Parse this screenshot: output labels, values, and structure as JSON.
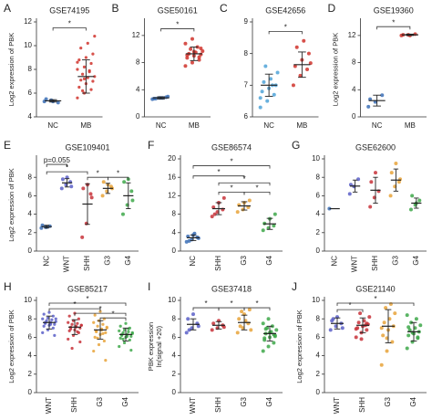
{
  "chart_data": [
    {
      "type": "dotplot",
      "panel": "A",
      "title": "GSE74195",
      "ylabel": "Log2 expression of PBK",
      "categories": [
        "NC",
        "MB"
      ],
      "colors": [
        "#3b6fb6",
        "#d0332b"
      ],
      "points": [
        [
          5.3,
          5.4,
          5.2,
          5.5,
          5.3
        ],
        [
          5.6,
          6.0,
          6.3,
          6.5,
          6.8,
          7.0,
          7.1,
          7.3,
          7.4,
          7.6,
          7.8,
          8.0,
          8.2,
          8.5,
          8.8,
          9.0,
          9.3,
          9.8,
          10.2,
          10.8,
          6.2,
          7.9,
          8.6,
          7.2
        ]
      ],
      "means": [
        5.35,
        7.4
      ],
      "sds": [
        0.1,
        1.4
      ],
      "ylim": [
        4,
        12
      ],
      "yticks": [
        4,
        6,
        8,
        10,
        12
      ],
      "annotations": [
        {
          "text": "*",
          "from": 0,
          "to": 1,
          "y": 11.5
        }
      ]
    },
    {
      "type": "dotplot",
      "panel": "B",
      "title": "GSE50161",
      "categories": [
        "NC",
        "MB"
      ],
      "colors": [
        "#3b6fb6",
        "#d0332b"
      ],
      "points": [
        [
          2.6,
          2.8,
          2.9,
          2.7,
          2.8,
          3.0,
          2.7,
          2.8
        ],
        [
          7.5,
          8.0,
          8.4,
          8.7,
          9.0,
          9.2,
          9.3,
          9.5,
          9.7,
          10.0,
          10.3,
          10.8,
          11.5,
          8.8,
          9.1,
          9.6,
          10.1
        ]
      ],
      "means": [
        2.8,
        9.3
      ],
      "sds": [
        0.15,
        1.0
      ],
      "ylim": [
        0,
        14
      ],
      "yticks": [
        0,
        4,
        8,
        12
      ],
      "annotations": [
        {
          "text": "*",
          "from": 0,
          "to": 1,
          "y": 13
        }
      ]
    },
    {
      "type": "dotplot",
      "panel": "C",
      "title": "GSE42656",
      "categories": [
        "NC",
        "MB"
      ],
      "colors": [
        "#4fa3d8",
        "#d0332b"
      ],
      "points": [
        [
          6.3,
          6.5,
          6.7,
          6.8,
          6.9,
          7.0,
          7.1,
          7.2,
          7.4,
          7.6,
          7.0,
          6.6
        ],
        [
          7.0,
          7.3,
          7.5,
          7.6,
          7.8,
          8.0,
          8.2,
          8.4,
          7.7
        ]
      ],
      "means": [
        7.0,
        7.65
      ],
      "sds": [
        0.35,
        0.4
      ],
      "ylim": [
        6,
        9
      ],
      "yticks": [
        6,
        7,
        8,
        9
      ],
      "annotations": [
        {
          "text": "*",
          "from": 0,
          "to": 1,
          "y": 8.7
        }
      ]
    },
    {
      "type": "dotplot",
      "panel": "D",
      "title": "GSE19360",
      "ylabel": "Log2 expression of PBK",
      "categories": [
        "NC",
        "MB"
      ],
      "colors": [
        "#3b6fb6",
        "#d0332b"
      ],
      "points": [
        [
          1.5,
          2.2,
          3.2,
          2.6
        ],
        [
          12.0,
          12.1,
          12.2,
          12.1,
          12.0
        ]
      ],
      "means": [
        2.4,
        12.1
      ],
      "sds": [
        0.8,
        0.1
      ],
      "ylim": [
        0,
        14
      ],
      "yticks": [
        0,
        4,
        8,
        12
      ],
      "annotations": [
        {
          "text": "*",
          "from": 0,
          "to": 1,
          "y": 13.3
        }
      ]
    },
    {
      "type": "dotplot",
      "panel": "E",
      "title": "GSE109401",
      "ylabel": "Log2 expression of PBK",
      "categories": [
        "NC",
        "WNT",
        "SHH",
        "G3",
        "G4"
      ],
      "colors": [
        "#3b6fb6",
        "#5a5fc8",
        "#c8323a",
        "#e8a33a",
        "#3ea84a"
      ],
      "points": [
        [
          2.5,
          2.6,
          2.7,
          2.8,
          2.6
        ],
        [
          6.8,
          7.2,
          7.5,
          7.8,
          8.0,
          7.0
        ],
        [
          1.5,
          3.0,
          6.2,
          6.8,
          7.2,
          5.8
        ],
        [
          6.0,
          6.5,
          7.0,
          7.5,
          7.2,
          6.8
        ],
        [
          4.0,
          5.0,
          6.5,
          7.5,
          7.8,
          5.5
        ]
      ],
      "means": [
        2.65,
        7.4,
        5.1,
        6.8,
        6.0
      ],
      "sds": [
        0.15,
        0.45,
        2.2,
        0.55,
        1.4
      ],
      "ylim": [
        0,
        10
      ],
      "yticks": [
        0,
        2,
        4,
        6,
        8
      ],
      "annotations": [
        {
          "text": "p=0.055",
          "from": 0,
          "to": 1,
          "y": 9.4
        },
        {
          "text": "*",
          "from": 0,
          "to": 2,
          "y": 8.6
        },
        {
          "text": "*",
          "from": 2,
          "to": 3,
          "y": 8.0
        },
        {
          "text": "*",
          "from": 3,
          "to": 4,
          "y": 8.0
        }
      ]
    },
    {
      "type": "dotplot",
      "panel": "F",
      "title": "GSE86574",
      "categories": [
        "NC",
        "SHH",
        "G3",
        "G4"
      ],
      "colors": [
        "#3b6fb6",
        "#c8323a",
        "#e8a33a",
        "#3ea84a"
      ],
      "points": [
        [
          2.0,
          2.5,
          3.0,
          3.2,
          3.5,
          2.8,
          2.2,
          3.8
        ],
        [
          7.5,
          8.5,
          9.0,
          9.5,
          10.5,
          11.5,
          8.0
        ],
        [
          8.5,
          9.0,
          9.5,
          10.0,
          10.5,
          11.0
        ],
        [
          4.5,
          5.0,
          5.5,
          6.0,
          7.0,
          8.0
        ]
      ],
      "means": [
        2.9,
        9.2,
        9.8,
        5.9
      ],
      "sds": [
        0.6,
        1.3,
        0.9,
        1.2
      ],
      "ylim": [
        0,
        20
      ],
      "yticks": [
        0,
        4,
        8,
        12,
        16,
        20
      ],
      "annotations": [
        {
          "text": "*",
          "from": 0,
          "to": 3,
          "y": 18.5
        },
        {
          "text": "*",
          "from": 0,
          "to": 2,
          "y": 16.3
        },
        {
          "text": "*",
          "from": 1,
          "to": 3,
          "y": 14.8
        },
        {
          "text": "*",
          "from": 1,
          "to": 2,
          "y": 12.8
        },
        {
          "text": "*",
          "from": 2,
          "to": 3,
          "y": 12.8
        }
      ]
    },
    {
      "type": "dotplot",
      "panel": "G",
      "title": "GSE62600",
      "categories": [
        "NC",
        "WNT",
        "SHH",
        "G3",
        "G4"
      ],
      "colors": [
        "#3b6fb6",
        "#5a5fc8",
        "#c8323a",
        "#e8a33a",
        "#3ea84a"
      ],
      "points": [
        [
          4.6
        ],
        [
          6.2,
          7.0,
          7.8,
          7.2
        ],
        [
          4.8,
          5.8,
          6.5,
          7.5,
          8.5
        ],
        [
          6.0,
          7.0,
          7.5,
          8.5,
          9.5,
          7.8
        ],
        [
          4.5,
          5.0,
          5.5,
          6.0,
          5.2
        ]
      ],
      "means": [
        4.6,
        7.05,
        6.6,
        7.7,
        5.2
      ],
      "sds": [
        0,
        0.65,
        1.4,
        1.2,
        0.55
      ],
      "ylim": [
        0,
        10
      ],
      "yticks": [
        0,
        2,
        4,
        6,
        8,
        10
      ],
      "annotations": []
    },
    {
      "type": "dotplot",
      "panel": "H",
      "title": "GSE85217",
      "ylabel": "Log2 expression of PBK",
      "categories": [
        "WNT",
        "SHH",
        "G3",
        "G4"
      ],
      "colors": [
        "#5a5fc8",
        "#c8323a",
        "#e8a33a",
        "#3ea84a"
      ],
      "points": [
        [
          6.5,
          6.8,
          7.0,
          7.2,
          7.3,
          7.4,
          7.5,
          7.6,
          7.7,
          7.8,
          7.9,
          8.0,
          8.1,
          8.3,
          8.5,
          8.7,
          6.2,
          7.6,
          7.4,
          8.0
        ],
        [
          5.8,
          6.2,
          6.5,
          6.7,
          6.8,
          7.0,
          7.1,
          7.2,
          7.3,
          7.4,
          7.5,
          7.6,
          7.8,
          8.0,
          8.3,
          8.6,
          5.5,
          6.9,
          7.1,
          7.3,
          4.8,
          6.6
        ],
        [
          4.5,
          5.2,
          5.6,
          6.0,
          6.3,
          6.5,
          6.7,
          6.8,
          7.0,
          7.2,
          7.4,
          7.6,
          7.8,
          8.0,
          8.4,
          8.8,
          3.5,
          6.6,
          6.9,
          7.1,
          5.9,
          6.4
        ],
        [
          5.0,
          5.4,
          5.7,
          5.9,
          6.0,
          6.1,
          6.2,
          6.3,
          6.4,
          6.5,
          6.6,
          6.7,
          6.8,
          7.0,
          7.2,
          7.5,
          4.6,
          6.3,
          6.1,
          6.5,
          5.8,
          6.9
        ]
      ],
      "means": [
        7.6,
        7.1,
        6.8,
        6.3
      ],
      "sds": [
        0.7,
        0.8,
        1.0,
        0.7
      ],
      "ylim": [
        0,
        10
      ],
      "yticks": [
        0,
        2,
        4,
        6,
        8,
        10
      ],
      "annotations": [
        {
          "text": "*",
          "from": 0,
          "to": 3,
          "y": 9.7
        },
        {
          "text": "*",
          "from": 0,
          "to": 2,
          "y": 9.1
        },
        {
          "text": "*",
          "from": 1,
          "to": 3,
          "y": 8.6
        },
        {
          "text": "*",
          "from": 2,
          "to": 3,
          "y": 8.1
        }
      ]
    },
    {
      "type": "dotplot",
      "panel": "I",
      "title": "GSE37418",
      "ylabel": [
        "PBK expression",
        "ln(signal +20)"
      ],
      "categories": [
        "WNT",
        "SHH",
        "G3",
        "G4"
      ],
      "colors": [
        "#5a5fc8",
        "#c8323a",
        "#e8a33a",
        "#3ea84a"
      ],
      "points": [
        [
          6.5,
          7.0,
          7.5,
          8.0,
          8.5,
          7.2,
          6.8
        ],
        [
          6.8,
          7.0,
          7.3,
          7.5,
          7.8,
          7.1
        ],
        [
          6.5,
          7.0,
          7.5,
          8.0,
          8.5,
          9.0,
          7.2,
          7.8,
          6.8,
          8.8
        ],
        [
          4.5,
          5.0,
          5.4,
          5.7,
          6.0,
          6.2,
          6.4,
          6.6,
          6.8,
          7.0,
          7.2,
          7.5,
          8.0,
          6.3,
          5.9,
          6.5,
          6.1,
          6.9
        ]
      ],
      "means": [
        7.4,
        7.3,
        7.6,
        6.4
      ],
      "sds": [
        0.6,
        0.4,
        0.8,
        0.8
      ],
      "ylim": [
        0,
        10
      ],
      "yticks": [
        0,
        2,
        4,
        6,
        8,
        10
      ],
      "annotations": [
        {
          "text": "*",
          "from": 0,
          "to": 1,
          "y": 9.2
        },
        {
          "text": "*",
          "from": 1,
          "to": 2,
          "y": 9.2
        },
        {
          "text": "*",
          "from": 2,
          "to": 3,
          "y": 9.2
        }
      ]
    },
    {
      "type": "dotplot",
      "panel": "J",
      "title": "GSE21140",
      "ylabel": "Log2 expression of PBK",
      "categories": [
        "WNT",
        "SHH",
        "G3",
        "G4"
      ],
      "colors": [
        "#5a5fc8",
        "#c8323a",
        "#e8a33a",
        "#3ea84a"
      ],
      "points": [
        [
          6.8,
          7.2,
          7.5,
          7.8,
          8.2,
          7.0,
          8.0
        ],
        [
          6.0,
          6.5,
          6.8,
          7.0,
          7.2,
          7.4,
          7.6,
          7.8,
          8.2,
          8.6,
          7.3,
          6.9,
          5.8,
          7.5
        ],
        [
          3.0,
          4.5,
          5.5,
          6.2,
          6.8,
          7.2,
          7.6,
          8.0,
          8.6,
          9.2,
          9.6,
          7.0,
          5.9
        ],
        [
          4.8,
          5.5,
          5.9,
          6.2,
          6.4,
          6.6,
          6.8,
          7.0,
          7.3,
          7.6,
          8.0,
          8.4,
          6.5,
          6.0,
          7.1
        ]
      ],
      "means": [
        7.5,
        7.3,
        7.2,
        6.6
      ],
      "sds": [
        0.6,
        0.8,
        1.8,
        1.0
      ],
      "ylim": [
        0,
        10
      ],
      "yticks": [
        0,
        2,
        4,
        6,
        8,
        10
      ],
      "annotations": [
        {
          "text": "*",
          "from": 0,
          "to": 1,
          "y": 9.0
        },
        {
          "text": "*",
          "from": 0,
          "to": 3,
          "y": 9.7
        }
      ]
    }
  ]
}
